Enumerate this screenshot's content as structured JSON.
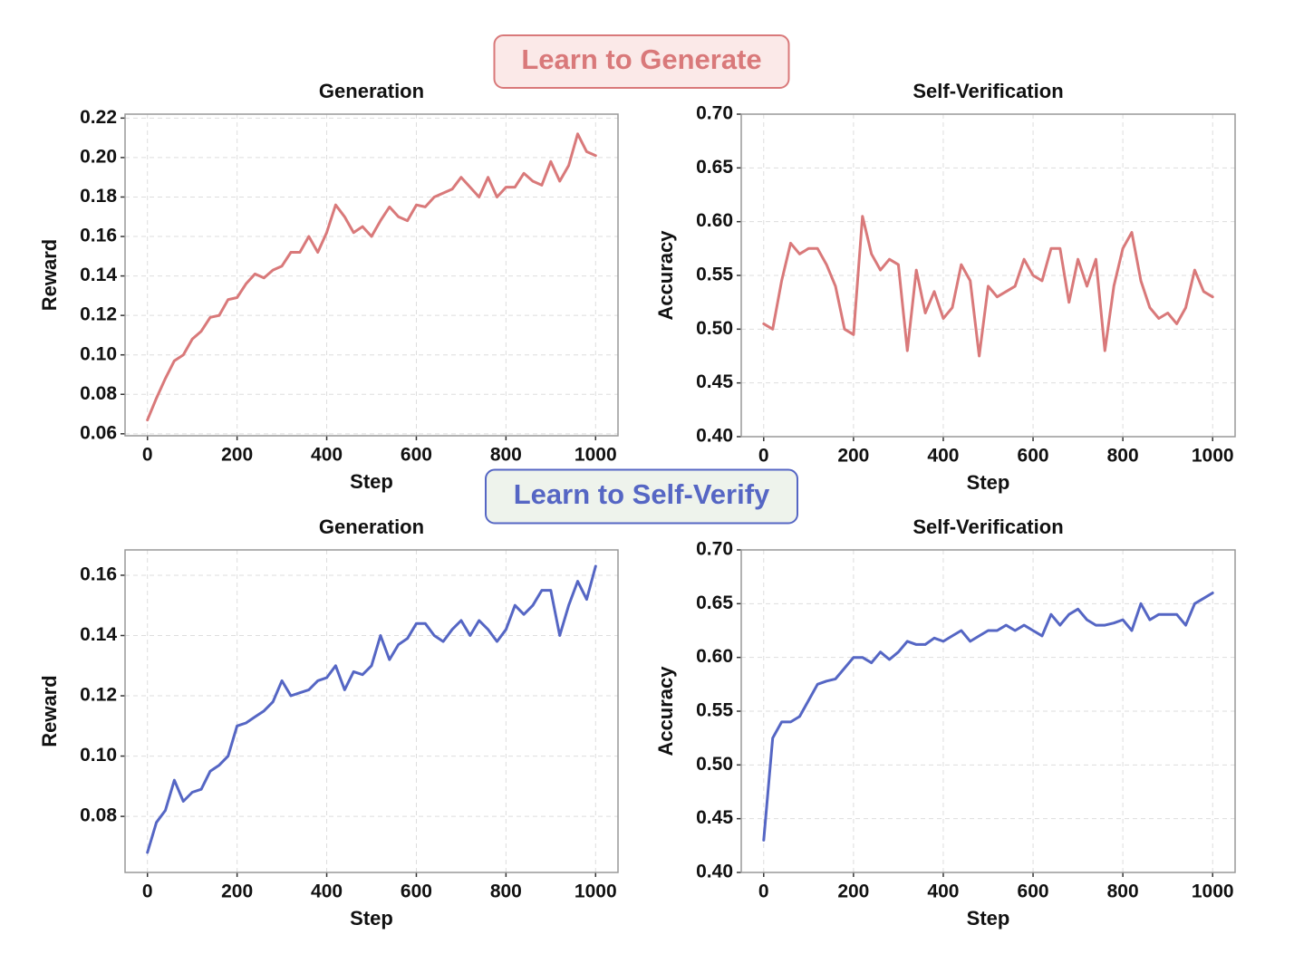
{
  "sections": [
    {
      "label": "Learn to Generate",
      "color": "#d9797a",
      "fill": "#fbe9e8"
    },
    {
      "label": "Learn to Self-Verify",
      "color": "#5566c4",
      "fill": "#eef3ec"
    }
  ],
  "chart_data": [
    {
      "type": "line",
      "title": "Generation",
      "xlabel": "Step",
      "ylabel": "Reward",
      "grid": true,
      "x": [
        0,
        20,
        40,
        60,
        80,
        100,
        120,
        140,
        160,
        180,
        200,
        220,
        240,
        260,
        280,
        300,
        320,
        340,
        360,
        380,
        400,
        420,
        440,
        460,
        480,
        500,
        520,
        540,
        560,
        580,
        600,
        620,
        640,
        660,
        680,
        700,
        720,
        740,
        760,
        780,
        800,
        820,
        840,
        860,
        880,
        900,
        920,
        940,
        960,
        980,
        1000
      ],
      "series": [
        {
          "color": "#d9797a",
          "values": [
            0.067,
            0.078,
            0.088,
            0.097,
            0.1,
            0.108,
            0.112,
            0.119,
            0.12,
            0.128,
            0.129,
            0.136,
            0.141,
            0.139,
            0.143,
            0.145,
            0.152,
            0.152,
            0.16,
            0.152,
            0.162,
            0.176,
            0.17,
            0.162,
            0.165,
            0.16,
            0.168,
            0.175,
            0.17,
            0.168,
            0.176,
            0.175,
            0.18,
            0.182,
            0.184,
            0.19,
            0.185,
            0.18,
            0.19,
            0.18,
            0.185,
            0.185,
            0.192,
            0.188,
            0.186,
            0.198,
            0.188,
            0.196,
            0.212,
            0.203,
            0.201
          ]
        }
      ],
      "xlim": [
        -50,
        1050
      ],
      "xticks": [
        0,
        200,
        400,
        600,
        800,
        1000
      ],
      "ylim": [
        0.059,
        0.222
      ],
      "yticks": [
        0.06,
        0.08,
        {
          "value": 0.1,
          "label": "0.10"
        },
        0.12,
        0.14,
        0.16,
        0.18,
        {
          "value": 0.2,
          "label": "0.20"
        },
        0.22
      ]
    },
    {
      "type": "line",
      "title": "Self-Verification",
      "xlabel": "Step",
      "ylabel": "Accuracy",
      "grid": true,
      "x": [
        0,
        20,
        40,
        60,
        80,
        100,
        120,
        140,
        160,
        180,
        200,
        220,
        240,
        260,
        280,
        300,
        320,
        340,
        360,
        380,
        400,
        420,
        440,
        460,
        480,
        500,
        520,
        540,
        560,
        580,
        600,
        620,
        640,
        660,
        680,
        700,
        720,
        740,
        760,
        780,
        800,
        820,
        840,
        860,
        880,
        900,
        920,
        940,
        960,
        980,
        1000
      ],
      "series": [
        {
          "color": "#d9797a",
          "values": [
            0.505,
            0.5,
            0.545,
            0.58,
            0.57,
            0.575,
            0.575,
            0.56,
            0.54,
            0.5,
            0.495,
            0.605,
            0.57,
            0.555,
            0.565,
            0.56,
            0.48,
            0.555,
            0.515,
            0.535,
            0.51,
            0.52,
            0.56,
            0.545,
            0.475,
            0.54,
            0.53,
            0.535,
            0.54,
            0.565,
            0.55,
            0.545,
            0.575,
            0.575,
            0.525,
            0.565,
            0.54,
            0.565,
            0.48,
            0.54,
            0.575,
            0.59,
            0.545,
            0.52,
            0.51,
            0.515,
            0.505,
            0.52,
            0.555,
            0.535,
            0.53
          ]
        }
      ],
      "xlim": [
        -50,
        1050
      ],
      "xticks": [
        0,
        200,
        400,
        600,
        800,
        1000
      ],
      "ylim": [
        0.4,
        0.7
      ],
      "yticks": [
        {
          "value": 0.4,
          "label": "0.40"
        },
        0.45,
        {
          "value": 0.5,
          "label": "0.50"
        },
        0.55,
        {
          "value": 0.6,
          "label": "0.60"
        },
        0.65,
        {
          "value": 0.7,
          "label": "0.70"
        }
      ]
    },
    {
      "type": "line",
      "title": "Generation",
      "xlabel": "Step",
      "ylabel": "Reward",
      "grid": true,
      "x": [
        0,
        20,
        40,
        60,
        80,
        100,
        120,
        140,
        160,
        180,
        200,
        220,
        240,
        260,
        280,
        300,
        320,
        340,
        360,
        380,
        400,
        420,
        440,
        460,
        480,
        500,
        520,
        540,
        560,
        580,
        600,
        620,
        640,
        660,
        680,
        700,
        720,
        740,
        760,
        780,
        800,
        820,
        840,
        860,
        880,
        900,
        920,
        940,
        960,
        980,
        1000
      ],
      "series": [
        {
          "color": "#5566c4",
          "values": [
            0.068,
            0.078,
            0.082,
            0.092,
            0.085,
            0.088,
            0.089,
            0.095,
            0.097,
            0.1,
            0.11,
            0.111,
            0.113,
            0.115,
            0.118,
            0.125,
            0.12,
            0.121,
            0.122,
            0.125,
            0.126,
            0.13,
            0.122,
            0.128,
            0.127,
            0.13,
            0.14,
            0.132,
            0.137,
            0.139,
            0.144,
            0.144,
            0.14,
            0.138,
            0.142,
            0.145,
            0.14,
            0.145,
            0.142,
            0.138,
            0.142,
            0.15,
            0.147,
            0.15,
            0.155,
            0.155,
            0.14,
            0.15,
            0.158,
            0.152,
            0.163
          ]
        }
      ],
      "xlim": [
        -50,
        1050
      ],
      "xticks": [
        0,
        200,
        400,
        600,
        800,
        1000
      ],
      "ylim": [
        0.0614,
        0.1684
      ],
      "yticks": [
        0.08,
        {
          "value": 0.1,
          "label": "0.10"
        },
        0.12,
        0.14,
        0.16
      ]
    },
    {
      "type": "line",
      "title": "Self-Verification",
      "xlabel": "Step",
      "ylabel": "Accuracy",
      "grid": true,
      "x": [
        0,
        20,
        40,
        60,
        80,
        100,
        120,
        140,
        160,
        180,
        200,
        220,
        240,
        260,
        280,
        300,
        320,
        340,
        360,
        380,
        400,
        420,
        440,
        460,
        480,
        500,
        520,
        540,
        560,
        580,
        600,
        620,
        640,
        660,
        680,
        700,
        720,
        740,
        760,
        780,
        800,
        820,
        840,
        860,
        880,
        900,
        920,
        940,
        960,
        980,
        1000
      ],
      "series": [
        {
          "color": "#5566c4",
          "values": [
            0.43,
            0.525,
            0.54,
            0.54,
            0.545,
            0.56,
            0.575,
            0.578,
            0.58,
            0.59,
            0.6,
            0.6,
            0.595,
            0.605,
            0.598,
            0.605,
            0.615,
            0.612,
            0.612,
            0.618,
            0.615,
            0.62,
            0.625,
            0.615,
            0.62,
            0.625,
            0.625,
            0.63,
            0.625,
            0.63,
            0.625,
            0.62,
            0.64,
            0.63,
            0.64,
            0.645,
            0.635,
            0.63,
            0.63,
            0.632,
            0.635,
            0.625,
            0.65,
            0.635,
            0.64,
            0.64,
            0.64,
            0.63,
            0.65,
            0.655,
            0.66
          ]
        }
      ],
      "xlim": [
        -50,
        1050
      ],
      "xticks": [
        0,
        200,
        400,
        600,
        800,
        1000
      ],
      "ylim": [
        0.4,
        0.7
      ],
      "yticks": [
        {
          "value": 0.4,
          "label": "0.40"
        },
        0.45,
        {
          "value": 0.5,
          "label": "0.50"
        },
        0.55,
        {
          "value": 0.6,
          "label": "0.60"
        },
        0.65,
        {
          "value": 0.7,
          "label": "0.70"
        }
      ]
    }
  ]
}
